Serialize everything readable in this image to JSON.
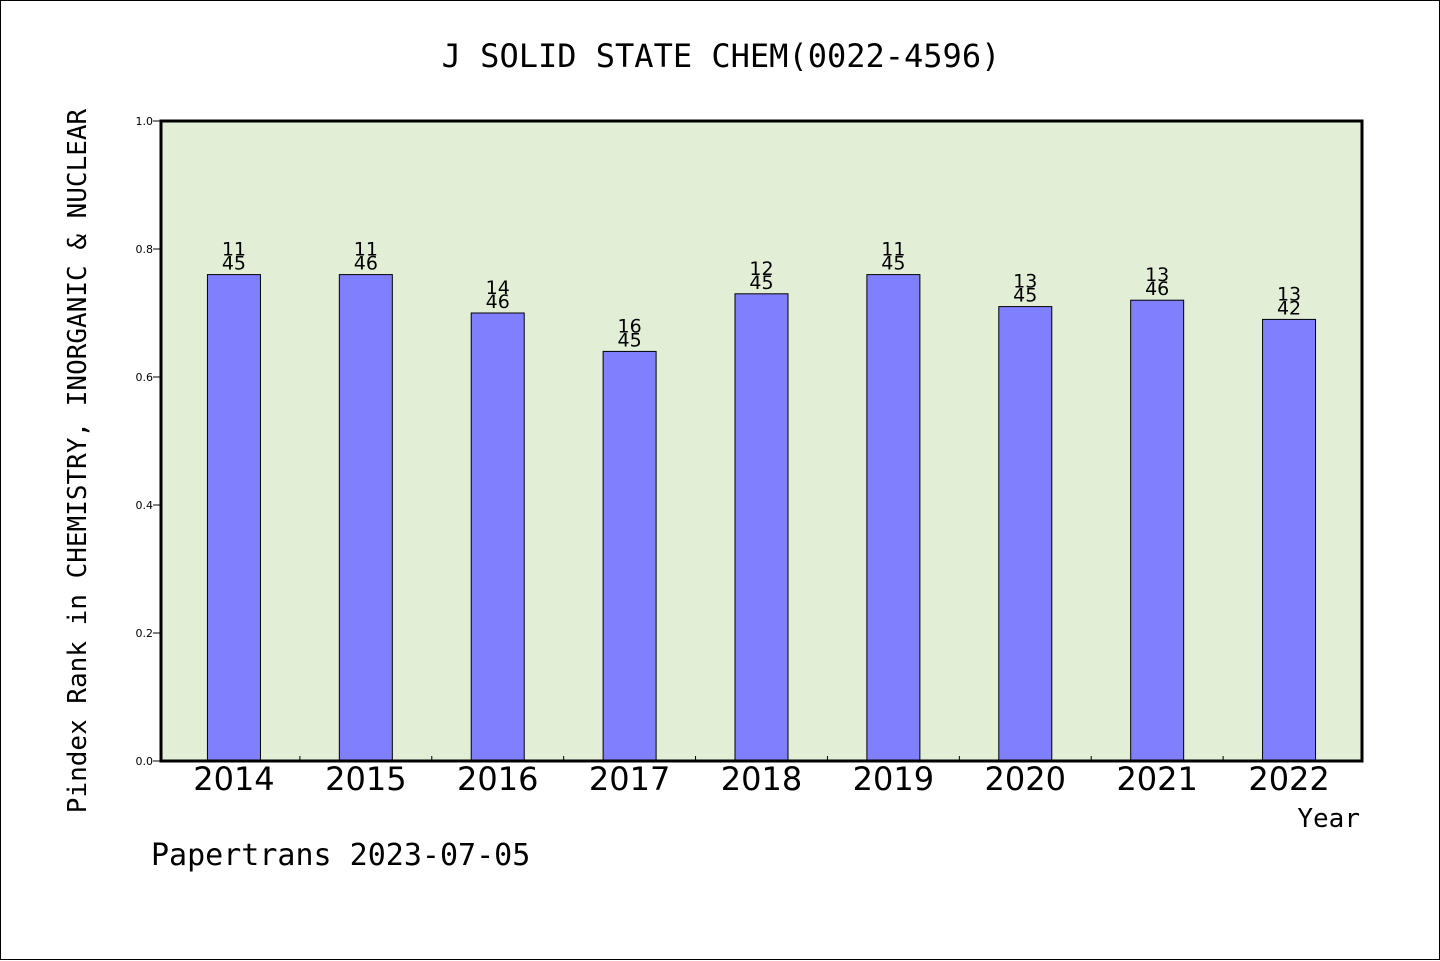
{
  "chart_data": {
    "type": "bar",
    "title": "J SOLID STATE CHEM(0022-4596)",
    "xlabel": "Year",
    "ylabel": "Pindex Rank in CHEMISTRY, INORGANIC & NUCLEAR",
    "categories": [
      "2014",
      "2015",
      "2016",
      "2017",
      "2018",
      "2019",
      "2020",
      "2021",
      "2022"
    ],
    "values": [
      0.76,
      0.76,
      0.7,
      0.64,
      0.73,
      0.76,
      0.71,
      0.72,
      0.69
    ],
    "rank_labels": [
      "11",
      "11",
      "14",
      "16",
      "12",
      "11",
      "13",
      "13",
      "13"
    ],
    "total_labels": [
      "45",
      "46",
      "46",
      "45",
      "45",
      "45",
      "45",
      "46",
      "42"
    ],
    "ylim": [
      0,
      1.0
    ],
    "yticks": [
      "0.0",
      "0.2",
      "0.4",
      "0.6",
      "0.8",
      "1.0"
    ],
    "grid": false,
    "colors": {
      "bar": "#8080ff",
      "plot_background": "#e2efd6",
      "axis": "#000000"
    }
  },
  "footer": "Papertrans 2023-07-05"
}
